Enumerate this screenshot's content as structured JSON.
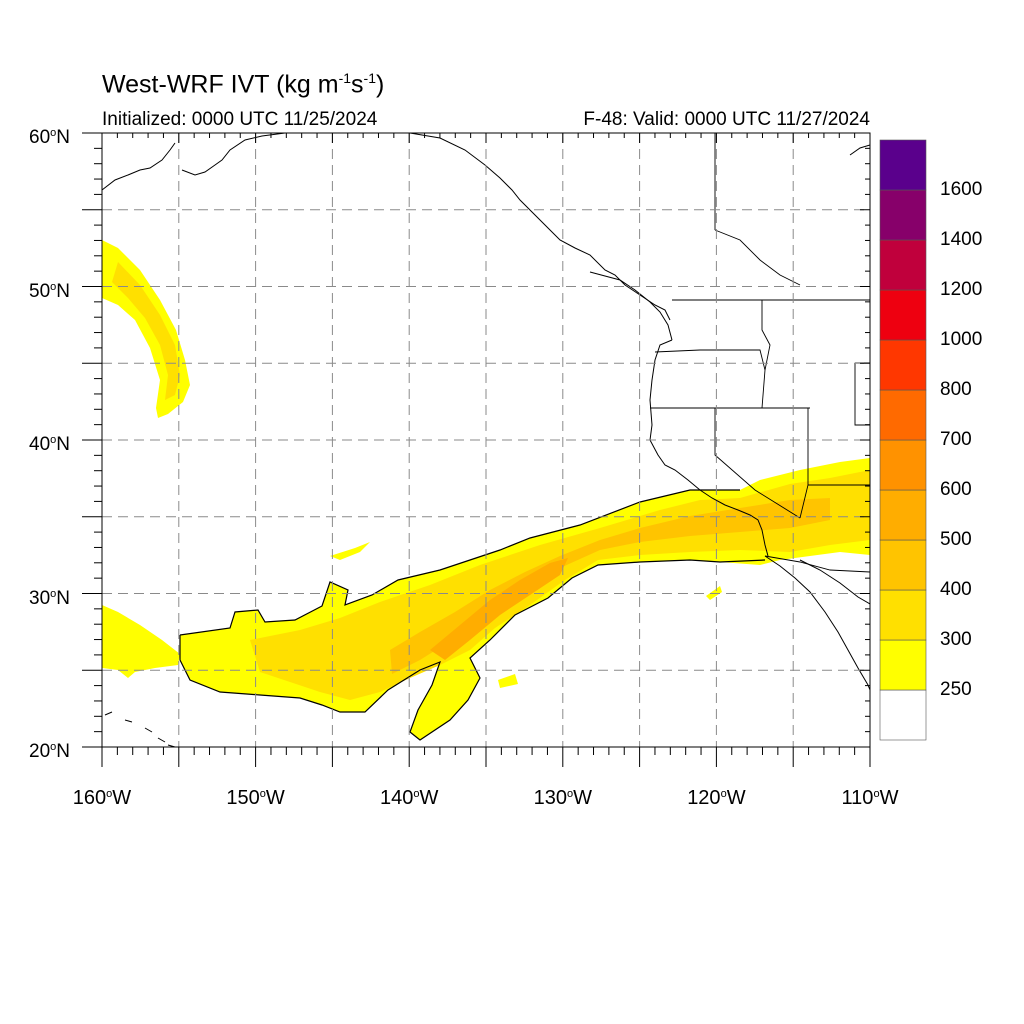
{
  "header": {
    "title_text": "West-WRF IVT (kg m",
    "title_exp1": "-1",
    "title_mid": "s",
    "title_exp2": "-1",
    "title_end": ")",
    "initialized": "Initialized: 0000 UTC 11/25/2024",
    "valid": "F-48: Valid: 0000 UTC 11/27/2024"
  },
  "map": {
    "lat_ticks": [
      {
        "value": 60,
        "text": "60",
        "suffix": "N"
      },
      {
        "value": 50,
        "text": "50",
        "suffix": "N"
      },
      {
        "value": 40,
        "text": "40",
        "suffix": "N"
      },
      {
        "value": 30,
        "text": "30",
        "suffix": "N"
      },
      {
        "value": 20,
        "text": "20",
        "suffix": "N"
      }
    ],
    "lon_ticks": [
      {
        "value": -160,
        "text": "160",
        "suffix": "W"
      },
      {
        "value": -150,
        "text": "150",
        "suffix": "W"
      },
      {
        "value": -140,
        "text": "140",
        "suffix": "W"
      },
      {
        "value": -130,
        "text": "130",
        "suffix": "W"
      },
      {
        "value": -120,
        "text": "120",
        "suffix": "W"
      },
      {
        "value": -110,
        "text": "110",
        "suffix": "W"
      }
    ],
    "extent": {
      "lon_min": -160,
      "lon_max": -110,
      "lat_min": 20,
      "lat_max": 60
    },
    "gridlines": "dashed",
    "degree_symbol": "o"
  },
  "colorbar": {
    "levels": [
      "250",
      "300",
      "400",
      "500",
      "600",
      "700",
      "800",
      "1000",
      "1200",
      "1400",
      "1600"
    ],
    "colors": [
      "#ffffff",
      "#ffff00",
      "#ffe000",
      "#ffc400",
      "#ffad00",
      "#ff9200",
      "#ff6a00",
      "#ff3700",
      "#ee0010",
      "#c0003c",
      "#87006a",
      "#5a008c"
    ]
  }
}
